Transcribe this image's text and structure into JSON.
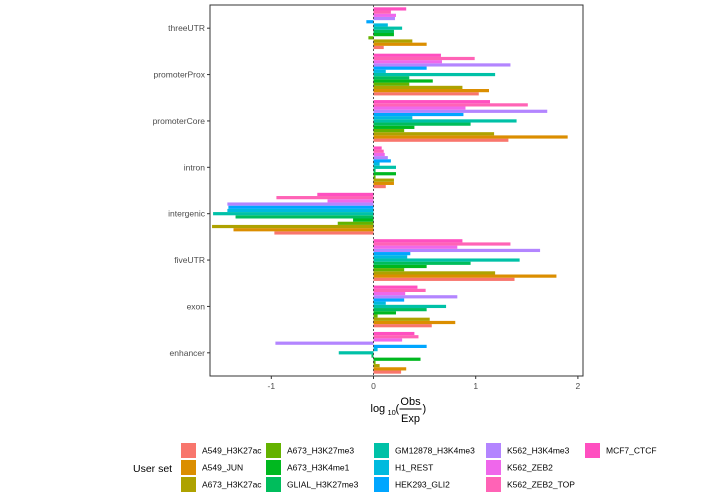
{
  "chart_data": {
    "type": "bar",
    "orientation": "horizontal",
    "categories": [
      "threeUTR",
      "promoterProx",
      "promoterCore",
      "intron",
      "intergenic",
      "fiveUTR",
      "exon",
      "enhancer"
    ],
    "xlim": [
      -1.6,
      2.05
    ],
    "x_ticks": [
      -1,
      0,
      1,
      2
    ],
    "x_tick_labels": [
      "-1",
      "0",
      "1",
      "2"
    ],
    "xlabel": {
      "prefix": "log",
      "subscript": "10",
      "numerator": "Obs",
      "denominator": "Exp"
    },
    "legend_title": "User set",
    "legend_position": "bottom",
    "zero_line": "dashed",
    "series": [
      {
        "name": "A549_H3K27ac",
        "color": "#F8766D",
        "values": [
          0.1,
          1.03,
          1.32,
          0.12,
          -0.97,
          1.38,
          0.57,
          0.27
        ]
      },
      {
        "name": "A549_JUN",
        "color": "#DB8E00",
        "values": [
          0.52,
          1.13,
          1.9,
          0.2,
          -1.37,
          1.79,
          0.8,
          0.32
        ]
      },
      {
        "name": "A673_H3K27ac",
        "color": "#AEA200",
        "values": [
          0.38,
          0.87,
          1.18,
          0.2,
          -1.58,
          1.19,
          0.55,
          0.06
        ]
      },
      {
        "name": "A673_H3K27me3",
        "color": "#64B200",
        "values": [
          -0.05,
          0.35,
          0.3,
          0.02,
          -0.35,
          0.3,
          0.04,
          0.02
        ]
      },
      {
        "name": "A673_H3K4me1",
        "color": "#00B81F",
        "values": [
          0.2,
          0.58,
          0.4,
          0.22,
          -0.2,
          0.52,
          0.22,
          0.46
        ]
      },
      {
        "name": "GLIAL_H3K27me3",
        "color": "#00BD5C",
        "values": [
          0.2,
          0.35,
          0.95,
          0.02,
          -1.35,
          0.95,
          0.52,
          -0.02
        ]
      },
      {
        "name": "GM12878_H3K4me3",
        "color": "#00C1A7",
        "values": [
          0.28,
          1.19,
          1.4,
          0.22,
          -1.57,
          1.43,
          0.71,
          -0.34
        ]
      },
      {
        "name": "H1_REST",
        "color": "#00BADE",
        "values": [
          0.14,
          0.12,
          0.38,
          0.06,
          -1.43,
          0.33,
          0.12,
          0.04
        ]
      },
      {
        "name": "HEK293_GLI2",
        "color": "#00A6FF",
        "values": [
          -0.07,
          0.52,
          0.88,
          0.17,
          -1.42,
          0.36,
          0.3,
          0.52
        ]
      },
      {
        "name": "K562_H3K4me3",
        "color": "#B385FF",
        "values": [
          0.21,
          1.34,
          1.7,
          0.14,
          -1.43,
          1.63,
          0.82,
          -0.96
        ]
      },
      {
        "name": "K562_ZEB2",
        "color": "#EF67EB",
        "values": [
          0.22,
          0.67,
          0.9,
          0.11,
          -0.45,
          0.82,
          0.31,
          0.28
        ]
      },
      {
        "name": "K562_ZEB2_TOP",
        "color": "#FF63B6",
        "values": [
          0.17,
          0.99,
          1.51,
          0.1,
          -0.95,
          1.34,
          0.51,
          0.44
        ]
      },
      {
        "name": "MCF7_CTCF",
        "color": "#FF4FC0",
        "values": [
          0.32,
          0.66,
          1.14,
          0.08,
          -0.55,
          0.87,
          0.43,
          0.4
        ]
      }
    ]
  }
}
